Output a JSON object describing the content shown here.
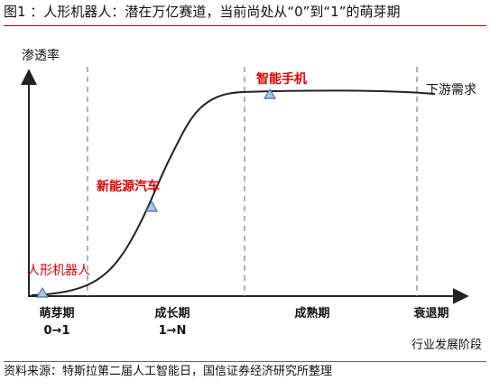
{
  "title": "图1 ：人形机器人：潜在万亿赛道，当前尚处从“0”到“1”的萌芽期",
  "source": "资料来源：特斯拉第二届人工智能日，国信证券经济研究所整理",
  "axes": {
    "y_label": "渗透率",
    "x_label": "行业发展阶段"
  },
  "stages": [
    {
      "name": "萌芽期",
      "sub": "0→1"
    },
    {
      "name": "成长期",
      "sub": "1→N"
    },
    {
      "name": "成熟期",
      "sub": ""
    },
    {
      "name": "衰退期",
      "sub": ""
    }
  ],
  "markers": [
    {
      "label": "人形机器人"
    },
    {
      "label": "新能源汽车"
    },
    {
      "label": "智能手机"
    }
  ],
  "curve_end_label": "下游需求",
  "colors": {
    "title_rule": "#c00000",
    "marker_label": "#e00000",
    "marker_fill": "#a9c4e6",
    "marker_stroke": "#4a6fa5",
    "divider": "#888888"
  }
}
